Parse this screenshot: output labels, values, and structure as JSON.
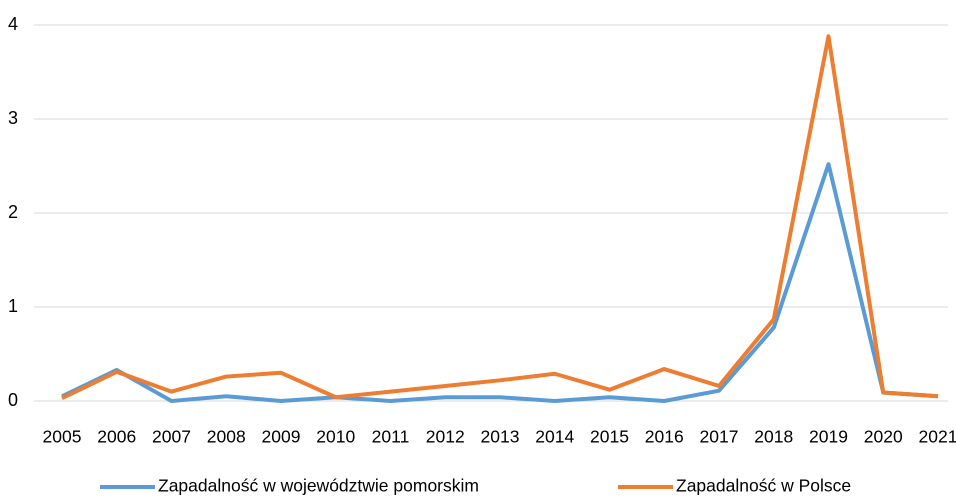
{
  "chart_data": {
    "type": "line",
    "categories": [
      "2005",
      "2006",
      "2007",
      "2008",
      "2009",
      "2010",
      "2011",
      "2012",
      "2013",
      "2014",
      "2015",
      "2016",
      "2017",
      "2018",
      "2019",
      "2020",
      "2021"
    ],
    "series": [
      {
        "name": "Zapadalność w województwie pomorskim",
        "color": "#5b9bd5",
        "values": [
          0.05,
          0.33,
          0.0,
          0.05,
          0.0,
          0.04,
          0.0,
          0.04,
          0.04,
          0.0,
          0.04,
          0.0,
          0.11,
          0.78,
          2.52,
          0.09,
          0.05
        ]
      },
      {
        "name": "Zapadalność w Polsce",
        "color": "#ed7d31",
        "values": [
          0.03,
          0.31,
          0.1,
          0.26,
          0.3,
          0.04,
          0.1,
          0.16,
          0.22,
          0.29,
          0.12,
          0.34,
          0.16,
          0.87,
          3.88,
          0.09,
          0.05
        ]
      }
    ],
    "ylim": [
      0,
      4
    ],
    "yticks": [
      0,
      1,
      2,
      3,
      4
    ],
    "grid": true,
    "legend": "bottom"
  }
}
